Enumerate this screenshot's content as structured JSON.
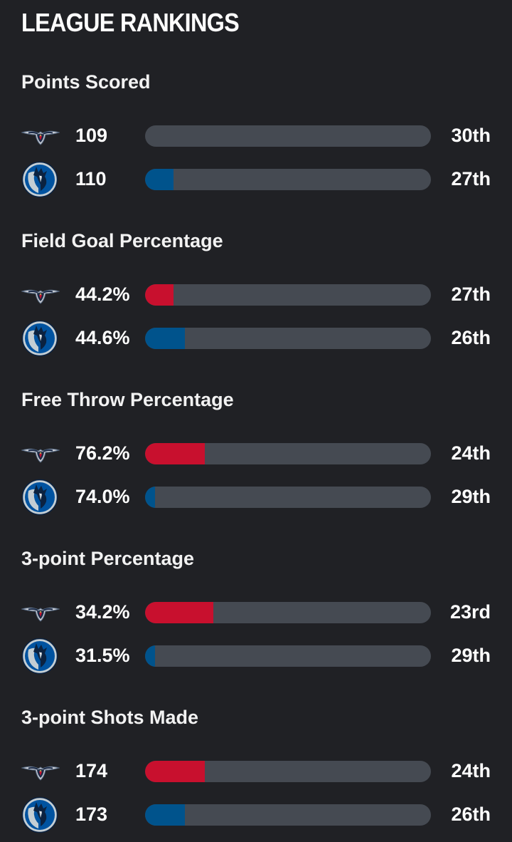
{
  "header": {
    "title": "LEAGUE RANKINGS"
  },
  "colors": {
    "pelicans": "#c8102e",
    "mavericks": "#00538c",
    "track": "#454a52",
    "background": "#202125"
  },
  "teams": {
    "home": {
      "logo_icon": "pelicans-logo-icon"
    },
    "away": {
      "logo_icon": "mavericks-logo-icon"
    }
  },
  "sections": [
    {
      "title": "Points Scored",
      "rows": [
        {
          "team": "pelicans",
          "value": "109",
          "rank": "30th",
          "fill_pct": 0
        },
        {
          "team": "mavericks",
          "value": "110",
          "rank": "27th",
          "fill_pct": 10
        }
      ]
    },
    {
      "title": "Field Goal Percentage",
      "rows": [
        {
          "team": "pelicans",
          "value": "44.2%",
          "rank": "27th",
          "fill_pct": 10
        },
        {
          "team": "mavericks",
          "value": "44.6%",
          "rank": "26th",
          "fill_pct": 14
        }
      ]
    },
    {
      "title": "Free Throw Percentage",
      "rows": [
        {
          "team": "pelicans",
          "value": "76.2%",
          "rank": "24th",
          "fill_pct": 21
        },
        {
          "team": "mavericks",
          "value": "74.0%",
          "rank": "29th",
          "fill_pct": 3.5
        }
      ]
    },
    {
      "title": "3-point Percentage",
      "rows": [
        {
          "team": "pelicans",
          "value": "34.2%",
          "rank": "23rd",
          "fill_pct": 24
        },
        {
          "team": "mavericks",
          "value": "31.5%",
          "rank": "29th",
          "fill_pct": 3.5
        }
      ]
    },
    {
      "title": "3-point Shots Made",
      "rows": [
        {
          "team": "pelicans",
          "value": "174",
          "rank": "24th",
          "fill_pct": 21
        },
        {
          "team": "mavericks",
          "value": "173",
          "rank": "26th",
          "fill_pct": 14
        }
      ]
    }
  ]
}
